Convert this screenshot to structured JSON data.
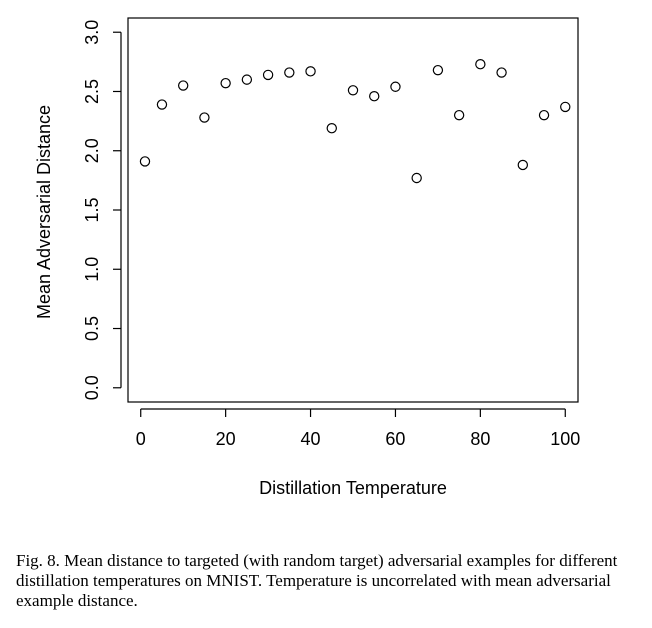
{
  "chart_data": {
    "type": "scatter",
    "title": "",
    "xlabel": "Distillation Temperature",
    "ylabel": "Mean Adversarial Distance",
    "xlim": [
      -3,
      103
    ],
    "ylim": [
      -0.12,
      3.12
    ],
    "xticks": [
      0,
      20,
      40,
      60,
      80,
      100
    ],
    "yticks": [
      0.0,
      0.5,
      1.0,
      1.5,
      2.0,
      2.5,
      3.0
    ],
    "xtick_labels": [
      "0",
      "20",
      "40",
      "60",
      "80",
      "100"
    ],
    "ytick_labels": [
      "0.0",
      "0.5",
      "1.0",
      "1.5",
      "2.0",
      "2.5",
      "3.0"
    ],
    "grid": false,
    "marker": "open-circle",
    "points": [
      {
        "x": 1,
        "y": 1.91
      },
      {
        "x": 5,
        "y": 2.39
      },
      {
        "x": 10,
        "y": 2.55
      },
      {
        "x": 15,
        "y": 2.28
      },
      {
        "x": 20,
        "y": 2.57
      },
      {
        "x": 25,
        "y": 2.6
      },
      {
        "x": 30,
        "y": 2.64
      },
      {
        "x": 35,
        "y": 2.66
      },
      {
        "x": 40,
        "y": 2.67
      },
      {
        "x": 45,
        "y": 2.19
      },
      {
        "x": 50,
        "y": 2.51
      },
      {
        "x": 55,
        "y": 2.46
      },
      {
        "x": 60,
        "y": 2.54
      },
      {
        "x": 65,
        "y": 1.77
      },
      {
        "x": 70,
        "y": 2.68
      },
      {
        "x": 75,
        "y": 2.3
      },
      {
        "x": 80,
        "y": 2.73
      },
      {
        "x": 85,
        "y": 2.66
      },
      {
        "x": 90,
        "y": 1.88
      },
      {
        "x": 95,
        "y": 2.3
      },
      {
        "x": 100,
        "y": 2.37
      }
    ]
  },
  "caption": {
    "text": "Fig. 8.  Mean distance to targeted (with random target) adversarial examples for different distillation temperatures on MNIST. Temperature is uncorrelated with mean adversarial example distance."
  }
}
